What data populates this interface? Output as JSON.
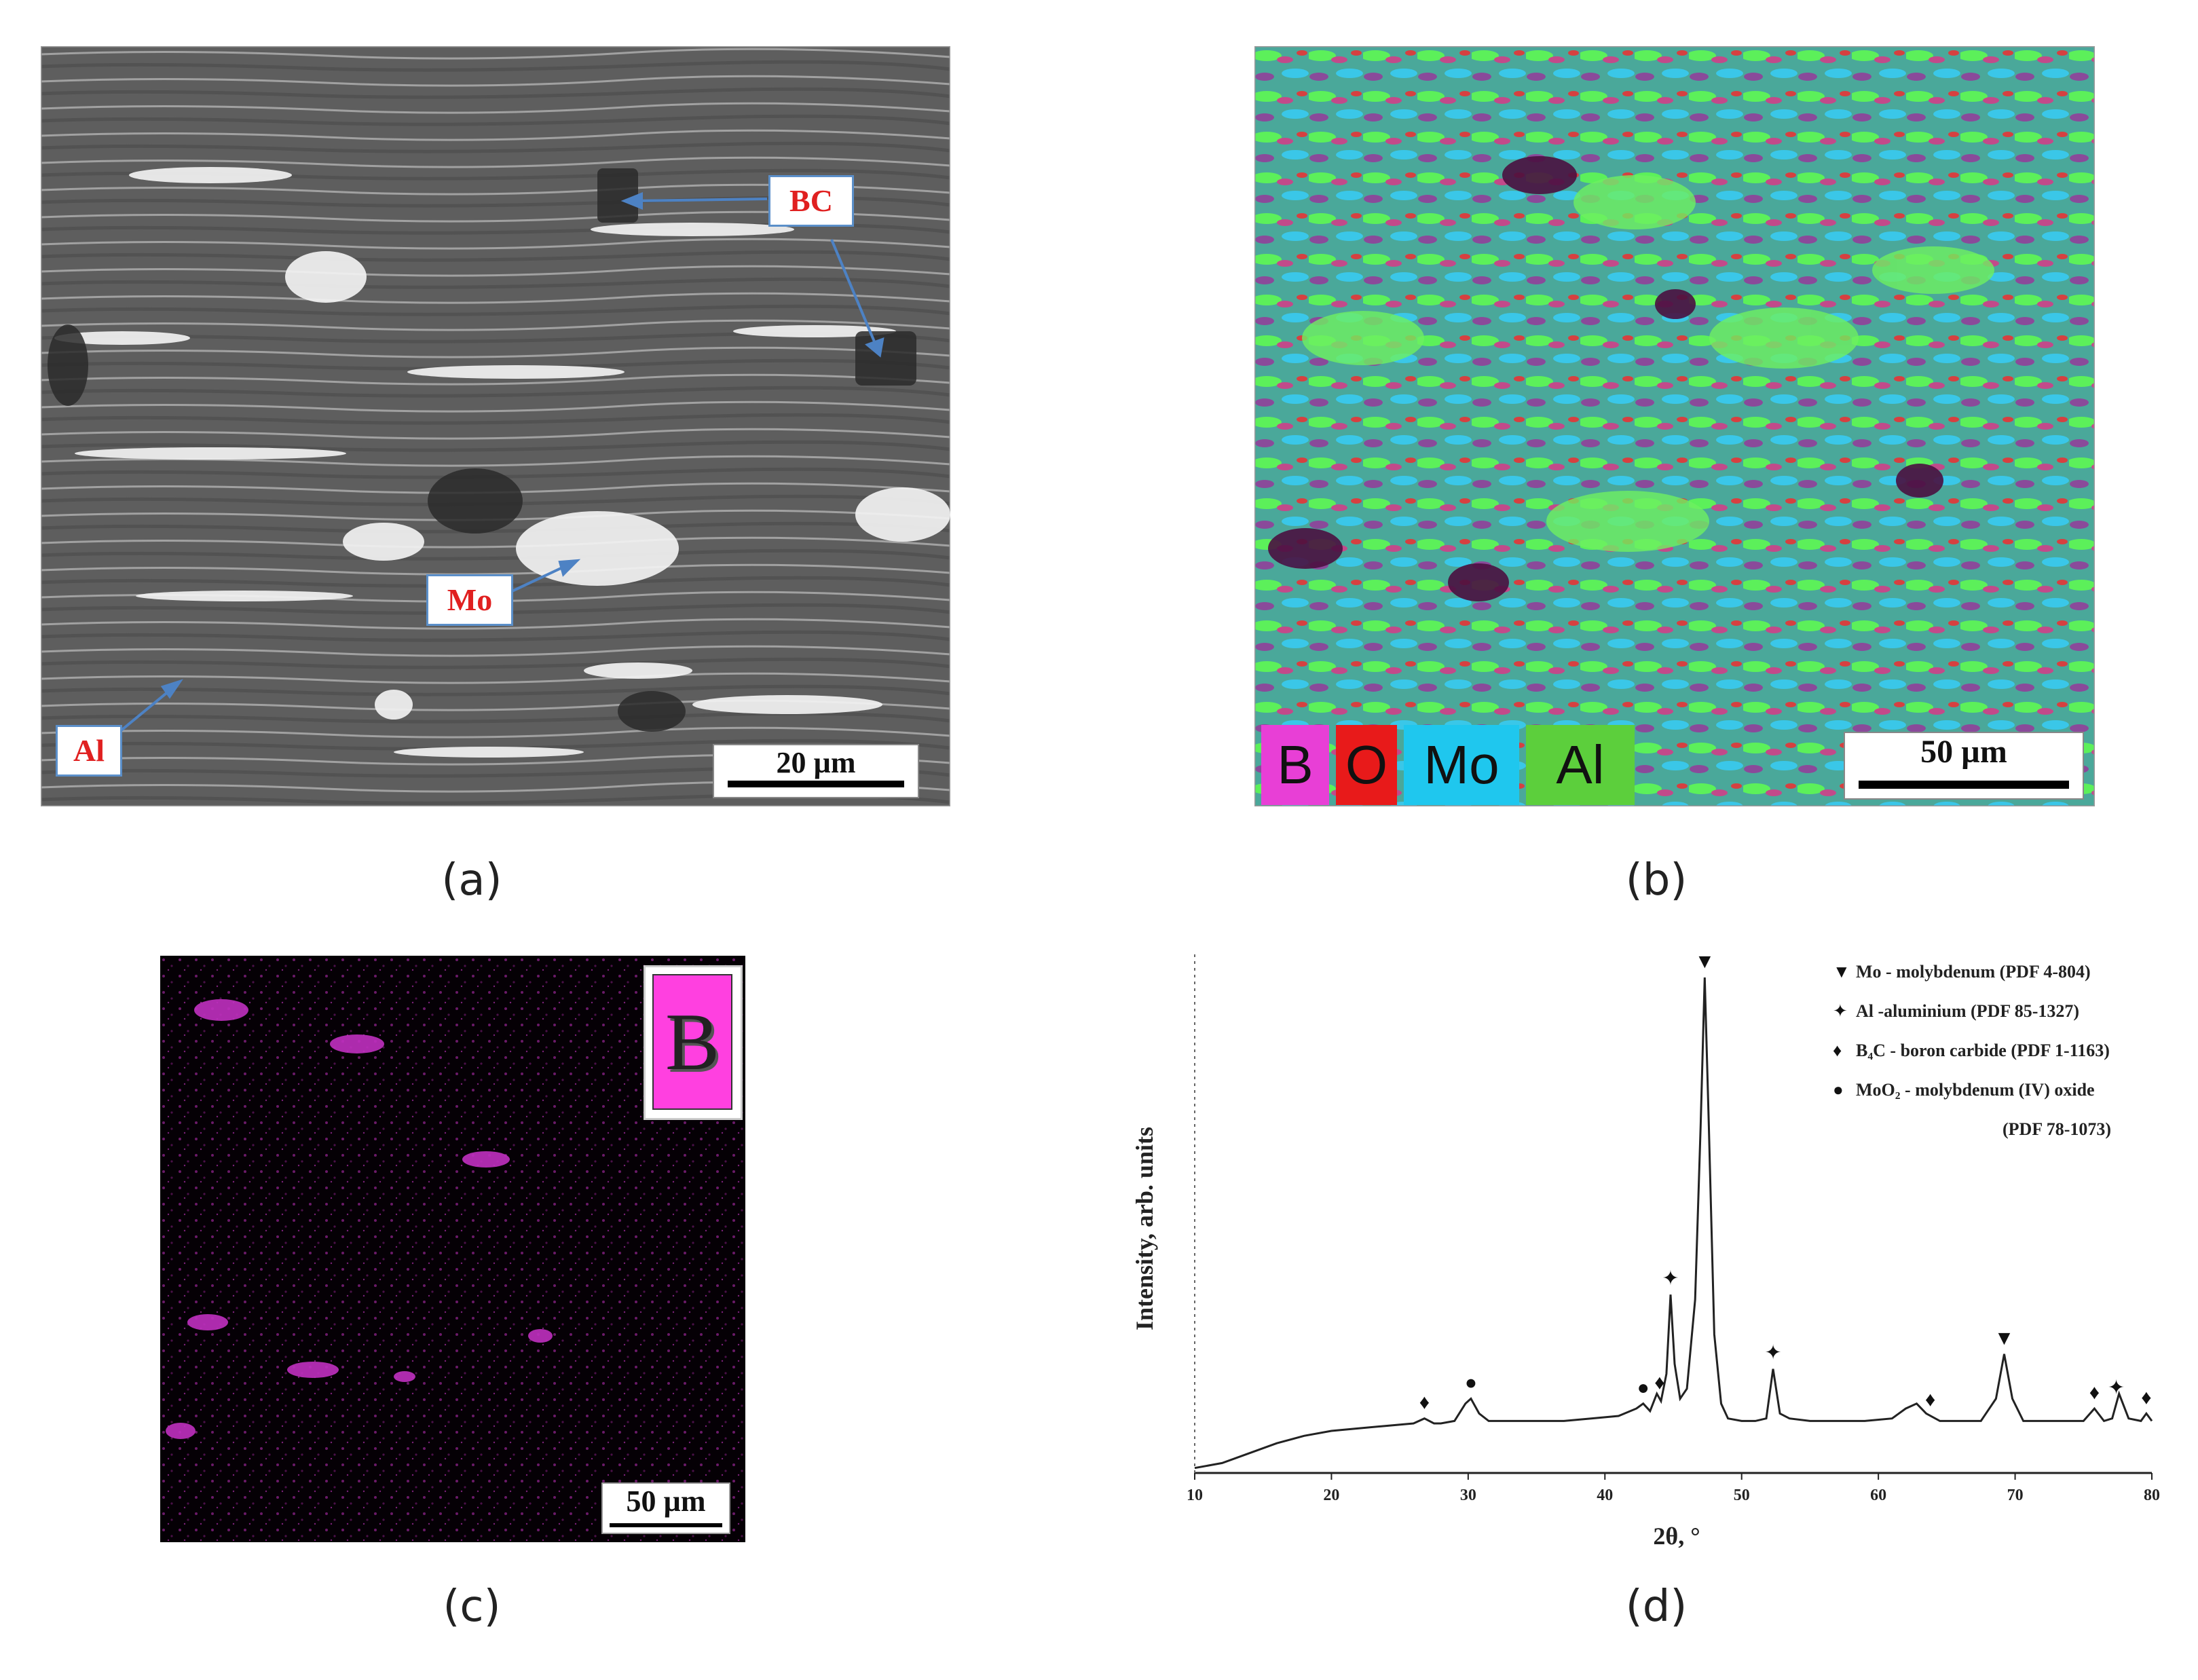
{
  "figure": {
    "panels": {
      "a": {
        "caption": "(a)",
        "labels": {
          "bc": "BC",
          "mo": "Mo",
          "al": "Al"
        },
        "scale_bar": "20 µm"
      },
      "b": {
        "caption": "(b)",
        "legend": [
          {
            "label": "B",
            "color": "#e83fd6"
          },
          {
            "label": "O",
            "color": "#e81a1a"
          },
          {
            "label": "Mo",
            "color": "#1fc7ee"
          },
          {
            "label": "Al",
            "color": "#5ccf3c"
          }
        ],
        "scale_bar": "50 µm"
      },
      "c": {
        "caption": "(c)",
        "element_label": "B",
        "element_color": "#ff40e0",
        "scale_bar": "50 µm"
      },
      "d": {
        "caption": "(d)"
      }
    }
  },
  "chart_data": {
    "type": "line",
    "xlabel": "2θ, °",
    "ylabel": "Intensity, arb. units",
    "xlim": [
      10,
      80
    ],
    "ylim": [
      0,
      100
    ],
    "x_ticks": [
      10,
      20,
      30,
      40,
      50,
      60,
      70,
      80
    ],
    "x_tick_labels": [
      "10",
      "20",
      "30",
      "40",
      "50",
      "60",
      "70",
      "80"
    ],
    "legend_position": "top-right",
    "legend": [
      {
        "marker": "▼",
        "text": "Mo - molybdenum (PDF 4-804)"
      },
      {
        "marker": "✦",
        "text": "Al -aluminium (PDF 85-1327)"
      },
      {
        "marker": "♦",
        "text": "B₄C - boron carbide (PDF 1-1163)"
      },
      {
        "marker": "●",
        "text": "MoO₂ - molybdenum (IV) oxide"
      },
      {
        "marker": "",
        "text": "(PDF 78-1073)"
      }
    ],
    "series": [
      {
        "x": [
          10,
          12,
          14,
          16,
          18,
          20,
          22,
          24,
          26,
          26.8,
          27.5,
          28,
          29,
          29.8,
          30.2,
          30.8,
          31.5,
          33,
          35,
          37,
          39,
          41,
          42.3,
          42.8,
          43.3,
          43.8,
          44.1,
          44.5,
          44.8,
          45.1,
          45.5,
          46,
          46.6,
          47.0,
          47.3,
          47.6,
          48.0,
          48.5,
          49,
          50,
          51,
          51.8,
          52.3,
          52.8,
          53.5,
          55,
          57,
          59,
          61,
          62,
          62.8,
          63.5,
          64.5,
          66,
          67.5,
          68.6,
          69.2,
          69.8,
          70.6,
          72,
          73.5,
          75,
          75.8,
          76.5,
          77.1,
          77.6,
          78.3,
          79.2,
          79.6,
          80
        ],
        "y": [
          1,
          2,
          4,
          6,
          7.5,
          8.5,
          9,
          9.5,
          10,
          11,
          10,
          10,
          10.5,
          14,
          15,
          12,
          10.5,
          10.5,
          10.5,
          10.5,
          11,
          11.5,
          13,
          14,
          12.5,
          16,
          14.5,
          20,
          36,
          22,
          15,
          17,
          35,
          70,
          100,
          70,
          28,
          14,
          11,
          10.5,
          10.5,
          11,
          21,
          12,
          11,
          10.5,
          10.5,
          10.5,
          11,
          13,
          14,
          12,
          10.5,
          10.5,
          10.5,
          15,
          24,
          15,
          10.5,
          10.5,
          10.5,
          10.5,
          13,
          10.5,
          11,
          16,
          11,
          10.5,
          12,
          10.5
        ]
      }
    ],
    "peak_markers": [
      {
        "x": 26.8,
        "marker": "♦"
      },
      {
        "x": 30.2,
        "marker": "●"
      },
      {
        "x": 42.8,
        "marker": "●"
      },
      {
        "x": 44.0,
        "marker": "♦"
      },
      {
        "x": 44.8,
        "marker": "✦"
      },
      {
        "x": 47.3,
        "marker": "▼"
      },
      {
        "x": 52.3,
        "marker": "✦"
      },
      {
        "x": 63.8,
        "marker": "♦"
      },
      {
        "x": 69.2,
        "marker": "▼"
      },
      {
        "x": 75.8,
        "marker": "♦"
      },
      {
        "x": 77.4,
        "marker": "✦"
      },
      {
        "x": 79.6,
        "marker": "♦"
      }
    ]
  }
}
